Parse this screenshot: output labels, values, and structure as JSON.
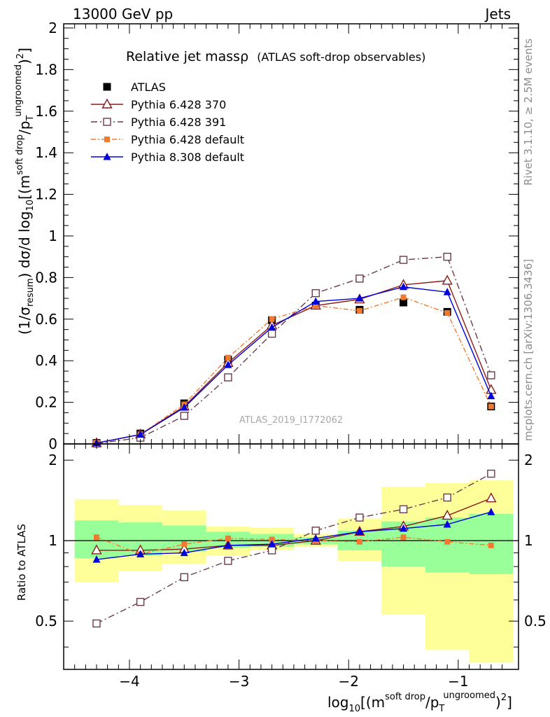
{
  "header": {
    "left": "13000 GeV pp",
    "right": "Jets"
  },
  "side_labels": {
    "rivet": "Rivet 3.1.10, ≥ 2.5M events",
    "mcplots": "mcplots.cern.ch [arXiv:1306.3436]"
  },
  "chart_data": {
    "type": "line",
    "title_main": "Relative jet massρ",
    "title_sub": "(ATLAS soft-drop observables)",
    "watermark": "ATLAS_2019_I1772062",
    "ylabel": "(1/σresum) dσ/d log10[(m soft drop/pT ungroomed)2]",
    "ylabel_parts": {
      "pre": "(1/σ",
      "sub1": "resum",
      "mid": ") dσ/d log",
      "sub2": "10",
      "bracket": "[(m",
      "sup1": "soft drop",
      "slash": "/p",
      "sub3": "T",
      "sup2": "ungroomed",
      "end": ")",
      "sup3": "2",
      "close": "]"
    },
    "ratio_ylabel": "Ratio to ATLAS",
    "xlabel_parts": {
      "pre": "log",
      "sub1": "10",
      "bracket": "[(m",
      "sup1": "soft drop",
      "slash": "/p",
      "sub2": "T",
      "sup2": "ungroomed",
      "end": ")",
      "sup3": "2",
      "close": "]"
    },
    "xlim": [
      -4.6,
      -0.45
    ],
    "ylim": [
      0,
      2.02
    ],
    "ratio_ylim": [
      0.33,
      2.3
    ],
    "x_ticks": [
      "-4",
      "-3",
      "-2",
      "-1"
    ],
    "x_tick_values": [
      -4,
      -3,
      -2,
      -1
    ],
    "y_ticks": [
      "0",
      "0.2",
      "0.4",
      "0.6",
      "0.8",
      "1",
      "1.2",
      "1.4",
      "1.6",
      "1.8",
      "2"
    ],
    "y_tick_values": [
      0,
      0.2,
      0.4,
      0.6,
      0.8,
      1.0,
      1.2,
      1.4,
      1.6,
      1.8,
      2.0
    ],
    "ratio_y_ticks": [
      "0.5",
      "1",
      "2"
    ],
    "ratio_y_tick_values": [
      0.5,
      1,
      2
    ],
    "bin_edges": [
      -4.5,
      -4.1,
      -3.7,
      -3.3,
      -2.9,
      -2.5,
      -2.1,
      -1.7,
      -1.3,
      -0.9,
      -0.5
    ],
    "x": [
      -4.3,
      -3.9,
      -3.5,
      -3.1,
      -2.7,
      -2.3,
      -1.9,
      -1.5,
      -1.1,
      -0.7
    ],
    "atlas": [
      0.005,
      0.05,
      0.195,
      0.405,
      0.595,
      0.665,
      0.645,
      0.68,
      0.635,
      0.18
    ],
    "band_inner": [
      [
        0.86,
        1.19
      ],
      [
        0.88,
        1.17
      ],
      [
        0.91,
        1.14
      ],
      [
        0.94,
        1.08
      ],
      [
        0.95,
        1.06
      ],
      [
        0.97,
        1.03
      ],
      [
        0.92,
        1.09
      ],
      [
        0.8,
        1.18
      ],
      [
        0.76,
        1.22
      ],
      [
        0.75,
        1.26
      ]
    ],
    "band_outer": [
      [
        0.7,
        1.43
      ],
      [
        0.77,
        1.36
      ],
      [
        0.82,
        1.3
      ],
      [
        0.88,
        1.13
      ],
      [
        0.92,
        1.12
      ],
      [
        0.95,
        1.06
      ],
      [
        0.84,
        1.21
      ],
      [
        0.53,
        1.59
      ],
      [
        0.39,
        1.64
      ],
      [
        0.35,
        1.68
      ]
    ],
    "series": [
      {
        "name": "ATLAS",
        "color": "#000000",
        "values": [
          0.005,
          0.05,
          0.195,
          0.405,
          0.595,
          0.665,
          0.645,
          0.68,
          0.635,
          0.18
        ],
        "ratio": [
          1,
          1,
          1,
          1,
          1,
          1,
          1,
          1,
          1,
          1
        ]
      },
      {
        "name": "Pythia 6.428 370",
        "color": "#8b1a1a",
        "values": [
          0.004,
          0.046,
          0.18,
          0.39,
          0.57,
          0.665,
          0.695,
          0.765,
          0.785,
          0.26
        ],
        "ratio": [
          0.92,
          0.92,
          0.93,
          0.96,
          0.96,
          1.0,
          1.08,
          1.13,
          1.24,
          1.44
        ]
      },
      {
        "name": "Pythia 6.428 391",
        "color": "#6b3a4b",
        "values": [
          0.002,
          0.03,
          0.135,
          0.32,
          0.53,
          0.725,
          0.795,
          0.885,
          0.9,
          0.33
        ],
        "ratio": [
          0.49,
          0.59,
          0.73,
          0.84,
          0.92,
          1.09,
          1.22,
          1.31,
          1.45,
          1.78
        ]
      },
      {
        "name": "Pythia 6.428 default",
        "color": "#f07b30",
        "values": [
          0.005,
          0.046,
          0.19,
          0.415,
          0.6,
          0.665,
          0.64,
          0.705,
          0.63,
          0.18
        ],
        "ratio": [
          1.03,
          0.89,
          0.97,
          1.02,
          1.01,
          1.0,
          0.99,
          1.03,
          0.99,
          0.96
        ]
      },
      {
        "name": "Pythia 8.308 default",
        "color": "#0000dd",
        "values": [
          0.004,
          0.045,
          0.175,
          0.38,
          0.56,
          0.685,
          0.7,
          0.755,
          0.73,
          0.23
        ],
        "ratio": [
          0.85,
          0.89,
          0.9,
          0.96,
          0.97,
          1.02,
          1.08,
          1.11,
          1.15,
          1.28
        ]
      }
    ],
    "legend_placement": "top-left"
  }
}
